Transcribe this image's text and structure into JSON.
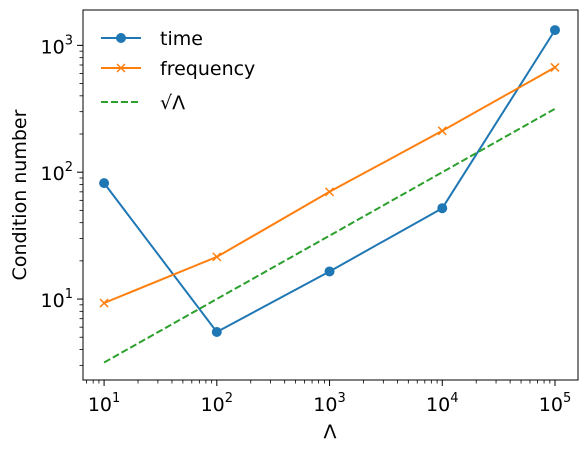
{
  "chart_data": {
    "type": "line",
    "xscale": "log",
    "yscale": "log",
    "xlabel": "Λ",
    "ylabel": "Condition number",
    "xlim": [
      6.5,
      160000
    ],
    "ylim": [
      2.3,
      1900
    ],
    "grid": false,
    "legend_position": "top-left",
    "x_ticks": [
      {
        "value": 10,
        "base": "10",
        "exp": "1"
      },
      {
        "value": 100,
        "base": "10",
        "exp": "2"
      },
      {
        "value": 1000,
        "base": "10",
        "exp": "3"
      },
      {
        "value": 10000,
        "base": "10",
        "exp": "4"
      },
      {
        "value": 100000,
        "base": "10",
        "exp": "5"
      }
    ],
    "y_ticks": [
      {
        "value": 10,
        "base": "10",
        "exp": "1"
      },
      {
        "value": 100,
        "base": "10",
        "exp": "2"
      },
      {
        "value": 1000,
        "base": "10",
        "exp": "3"
      }
    ],
    "series": [
      {
        "name": "time",
        "color": "#1f77b4",
        "marker": "circle",
        "linestyle": "solid",
        "x": [
          10,
          100,
          1000,
          10000,
          100000
        ],
        "y": [
          82,
          5.5,
          16.5,
          52,
          1320
        ]
      },
      {
        "name": "frequency",
        "color": "#ff7f0e",
        "marker": "x",
        "linestyle": "solid",
        "x": [
          10,
          100,
          1000,
          10000,
          100000
        ],
        "y": [
          9.3,
          21.5,
          70,
          212,
          670
        ]
      },
      {
        "name": "√Λ",
        "color": "#2ca02c",
        "marker": "none",
        "linestyle": "dashed",
        "x": [
          10,
          100,
          1000,
          10000,
          100000
        ],
        "y": [
          3.16,
          10,
          31.6,
          100,
          316
        ]
      }
    ]
  }
}
